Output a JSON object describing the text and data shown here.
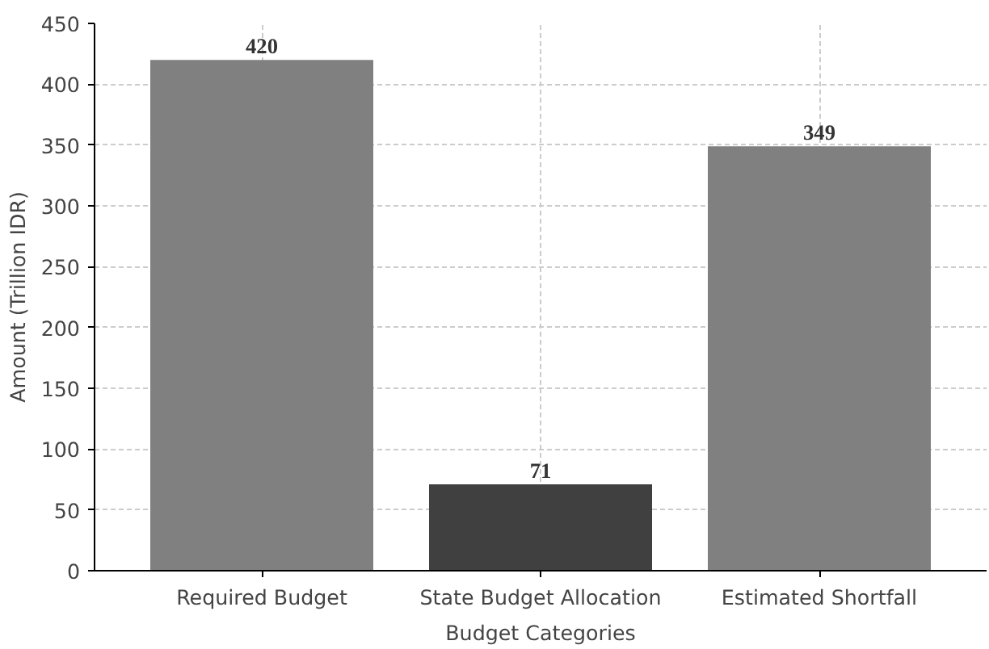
{
  "chart_data": {
    "type": "bar",
    "xlabel": "Budget Categories",
    "ylabel": "Amount (Trillion IDR)",
    "categories": [
      "Required Budget",
      "State Budget Allocation",
      "Estimated Shortfall"
    ],
    "values": [
      420,
      71,
      349
    ],
    "colors": [
      "#808080",
      "#404040",
      "#808080"
    ],
    "ylim": [
      0,
      450
    ],
    "yticks": [
      0,
      50,
      100,
      150,
      200,
      250,
      300,
      350,
      400,
      450
    ],
    "grid": true,
    "data_labels": true
  }
}
